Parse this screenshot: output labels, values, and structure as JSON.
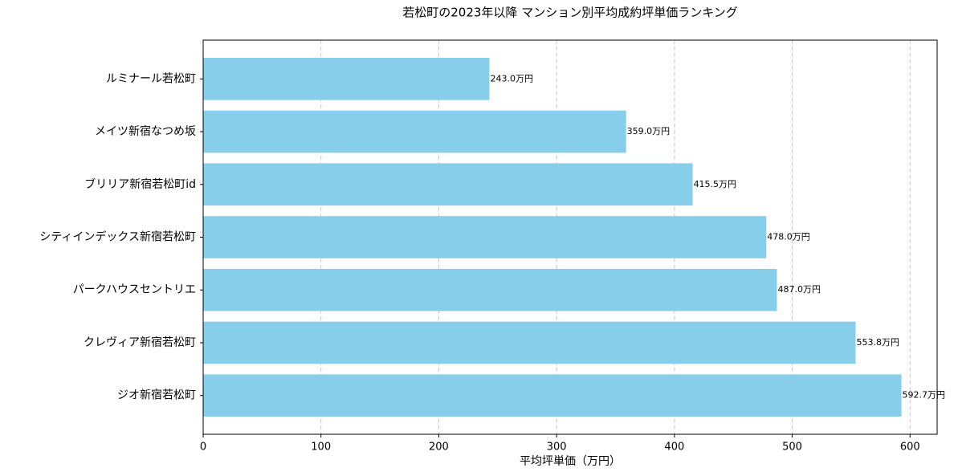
{
  "chart_data": {
    "type": "barh",
    "title": "若松町の2023年以降 マンション別平均成約坪単価ランキング",
    "xlabel": "平均坪単価（万円）",
    "categories": [
      "ルミナール若松町",
      "メイツ新宿なつめ坂",
      "ブリリア新宿若松町id",
      "シティインデックス新宿若松町",
      "パークハウスセントリエ",
      "クレヴィア新宿若松町",
      "ジオ新宿若松町"
    ],
    "values": [
      243.0,
      359.0,
      415.5,
      478.0,
      487.0,
      553.8,
      592.7
    ],
    "value_labels": [
      "243.0万円",
      "359.0万円",
      "415.5万円",
      "478.0万円",
      "487.0万円",
      "553.8万円",
      "592.7万円"
    ],
    "color": "#87ceeb",
    "xlim": [
      0,
      623
    ],
    "xticks": [
      0,
      100,
      200,
      300,
      400,
      500,
      600
    ],
    "grid": true
  }
}
